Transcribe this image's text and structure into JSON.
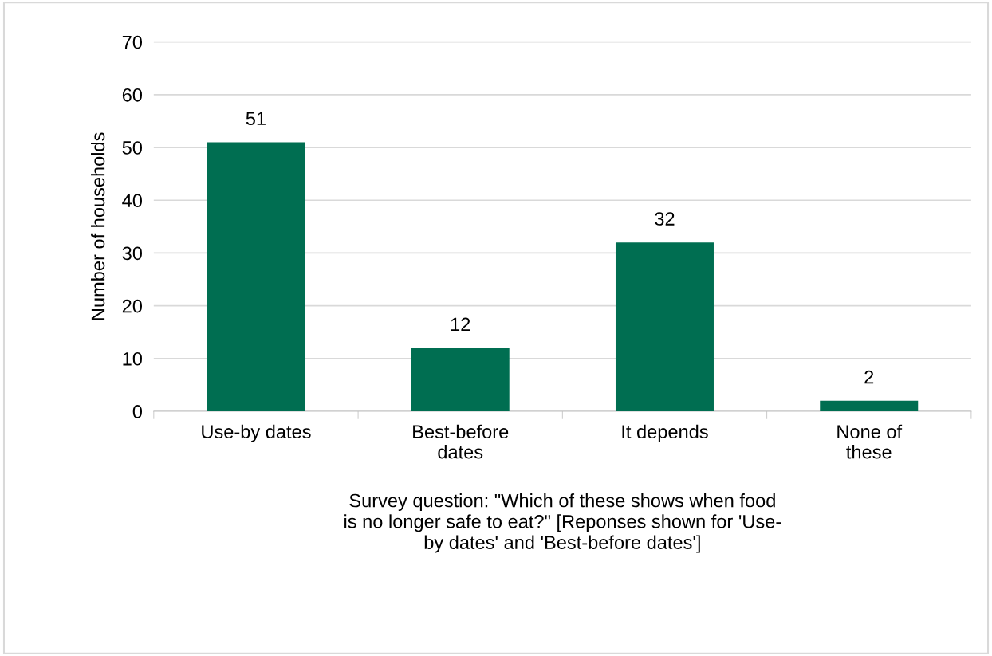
{
  "chart_data": {
    "type": "bar",
    "categories": [
      "Use-by dates",
      "Best-before\ndates",
      "It depends",
      "None of\nthese"
    ],
    "values": [
      51,
      12,
      32,
      2
    ],
    "color": "#006e51",
    "ylabel": "Number of households",
    "xlabel": "Survey question: \"Which of these shows when food\nis no longer safe to eat?\" [Reponses shown for 'Use-\nby dates' and 'Best-before dates']",
    "ylim": [
      0,
      70
    ],
    "yticks": [
      0,
      10,
      20,
      30,
      40,
      50,
      60,
      70
    ],
    "grid": "y",
    "data_labels": true
  }
}
